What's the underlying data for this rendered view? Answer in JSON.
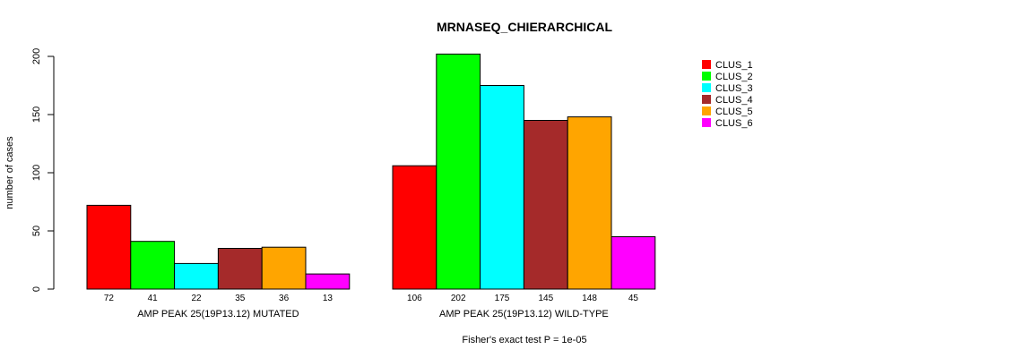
{
  "chart_data": {
    "type": "bar",
    "title": "MRNASEQ_CHIERARCHICAL",
    "ylabel": "number of cases",
    "ylim": [
      0,
      200
    ],
    "yticks": [
      0,
      50,
      100,
      150,
      200
    ],
    "groups": [
      {
        "label": "AMP PEAK 25(19P13.12) MUTATED",
        "values": [
          72,
          41,
          22,
          35,
          36,
          13
        ]
      },
      {
        "label": "AMP PEAK 25(19P13.12) WILD-TYPE",
        "values": [
          106,
          202,
          175,
          145,
          148,
          45
        ]
      }
    ],
    "series": [
      {
        "name": "CLUS_1",
        "color": "#ff0000"
      },
      {
        "name": "CLUS_2",
        "color": "#00ff00"
      },
      {
        "name": "CLUS_3",
        "color": "#00ffff"
      },
      {
        "name": "CLUS_4",
        "color": "#a52a2a"
      },
      {
        "name": "CLUS_5",
        "color": "#ffa500"
      },
      {
        "name": "CLUS_6",
        "color": "#ff00ff"
      }
    ],
    "legend_position": "top-right",
    "footnote": "Fisher's exact test P = 1e-05"
  }
}
